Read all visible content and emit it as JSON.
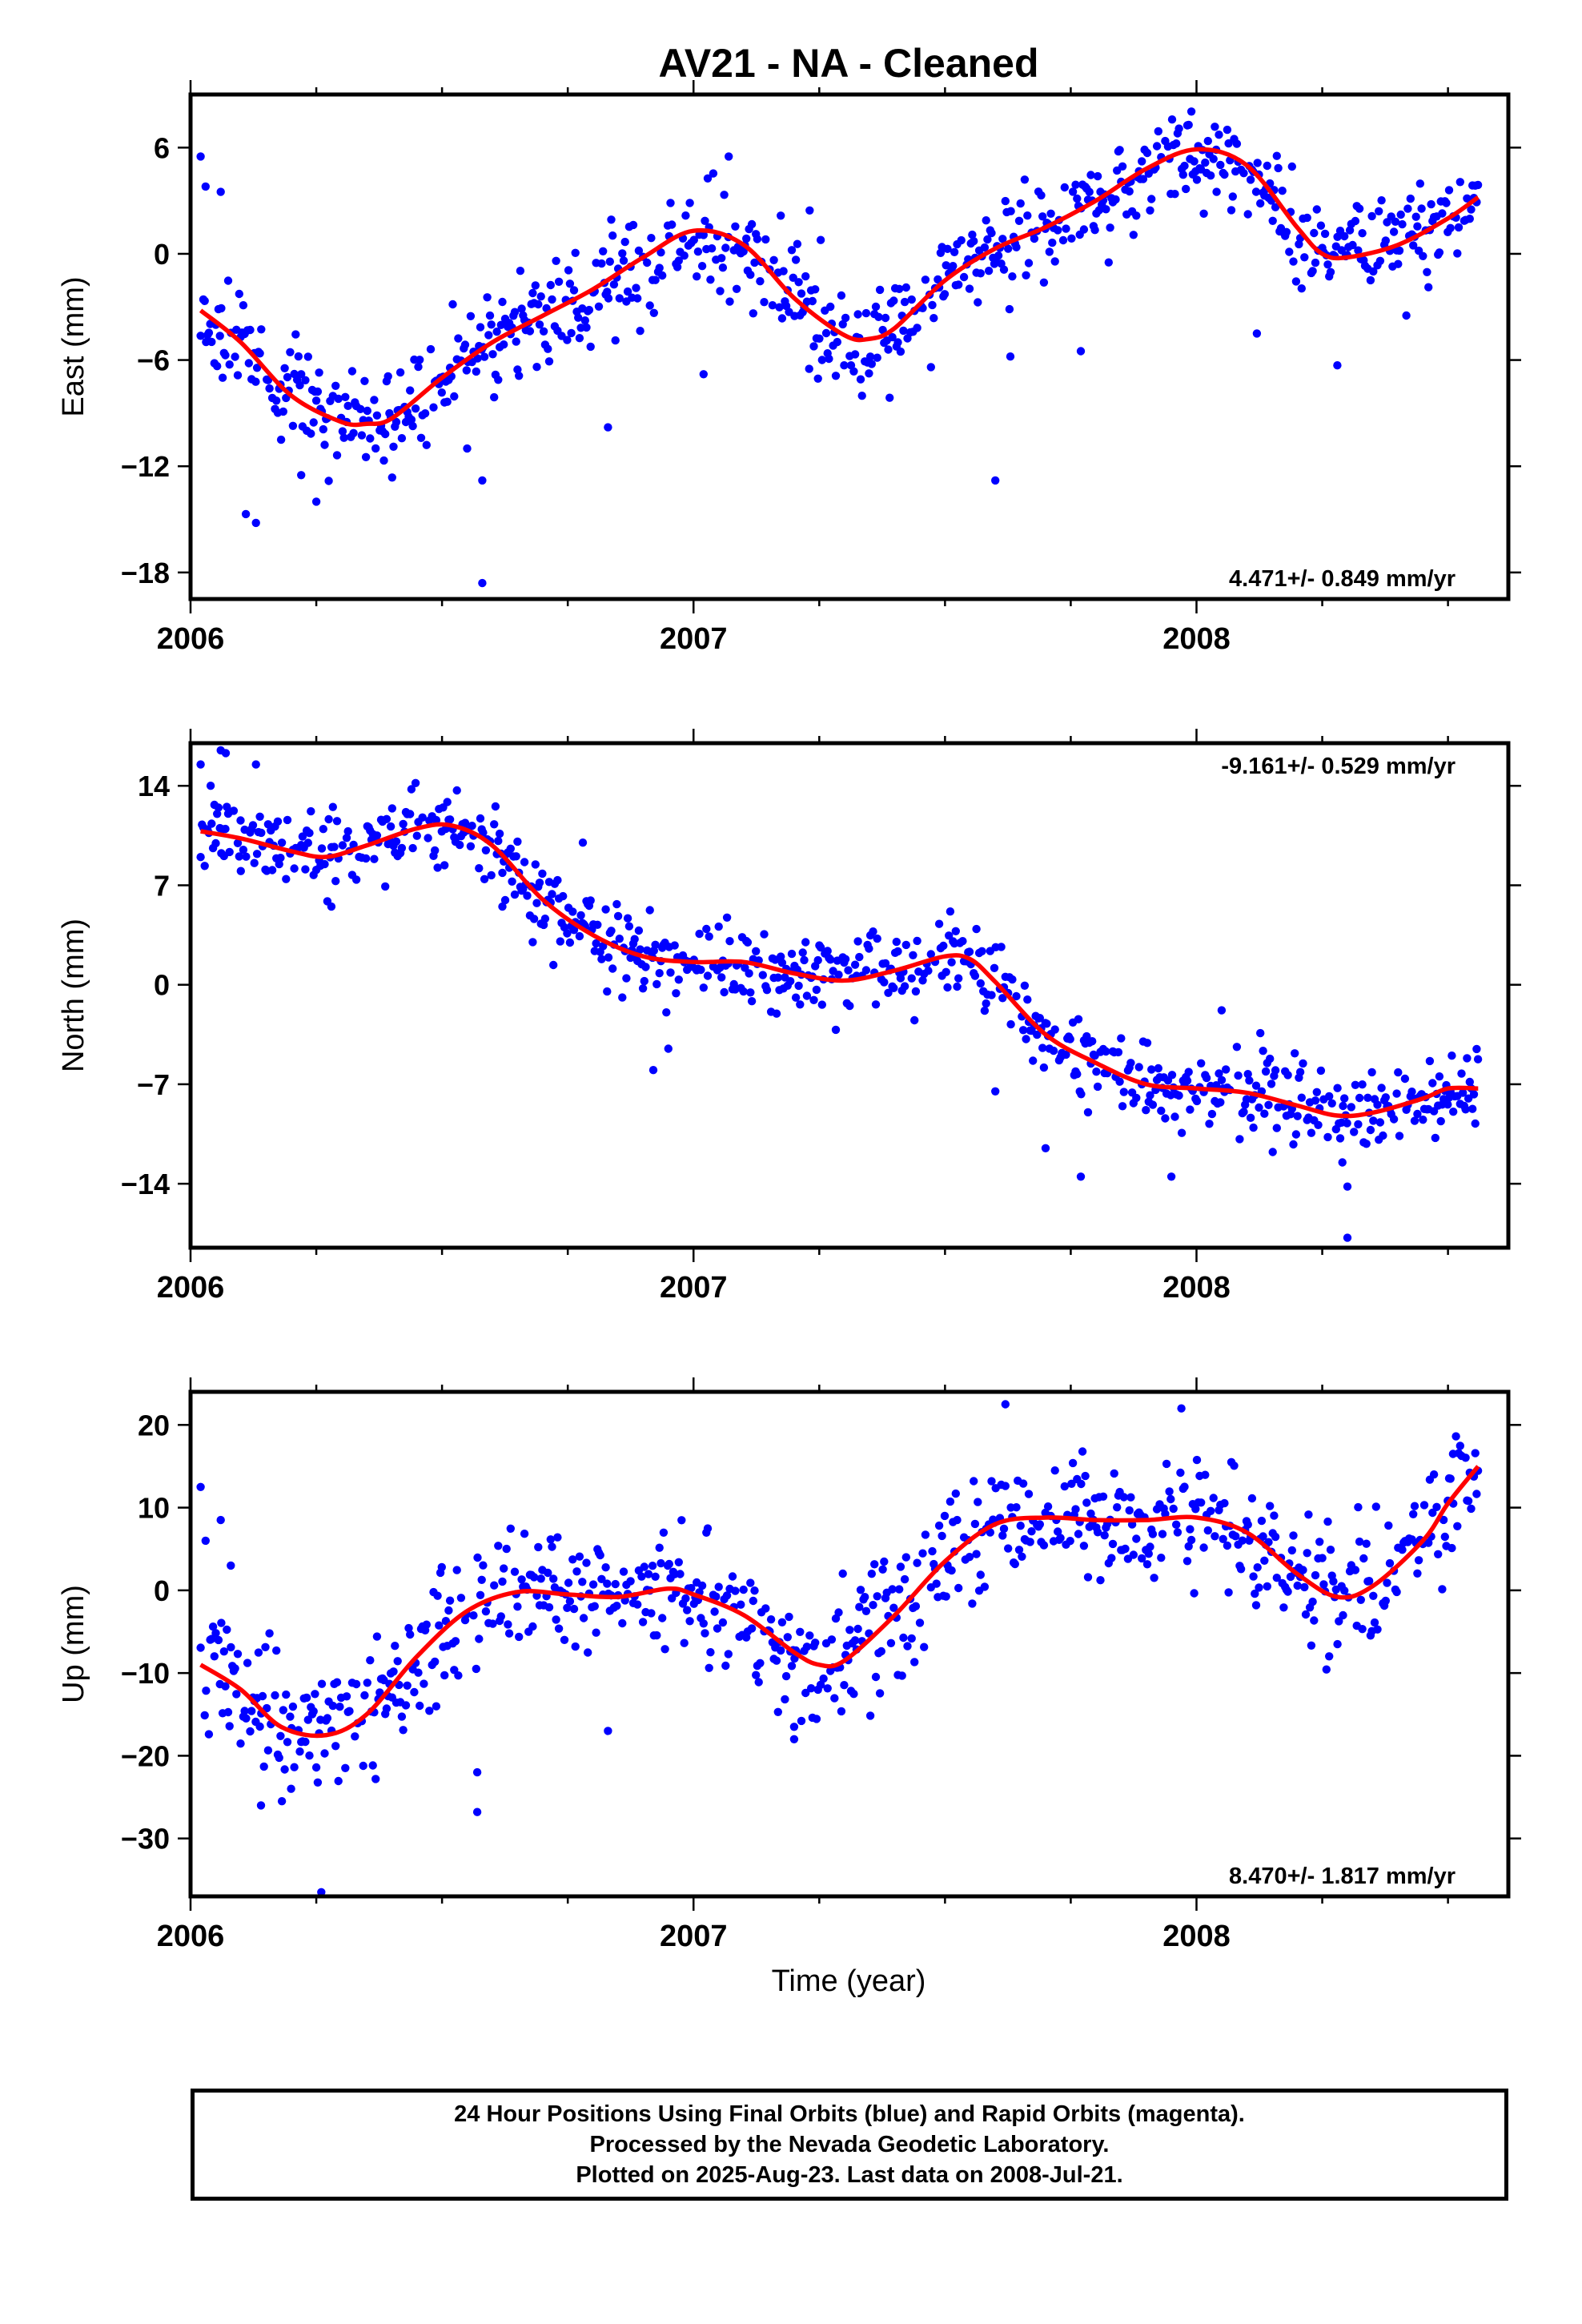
{
  "title": "AV21  - NA - Cleaned",
  "caption": {
    "line1": "24 Hour Positions Using Final Orbits (blue) and Rapid Orbits (magenta).",
    "line2": "Processed by the Nevada Geodetic Laboratory.",
    "line3": "Plotted on 2025-Aug-23. Last data on 2008-Jul-21."
  },
  "colors": {
    "points": "#0000ff",
    "fit": "#ff0000",
    "axes": "#000000"
  },
  "chart_data": [
    {
      "type": "scatter",
      "ylabel": "East (mm)",
      "xlabel": "",
      "xlim": [
        2006.0,
        2008.62
      ],
      "ylim": [
        -19.5,
        9.0
      ],
      "xticks": [
        "2006",
        "2007",
        "2008"
      ],
      "yticks": [
        "6",
        "0",
        "-6",
        "-12",
        "-18"
      ],
      "rate_label": "4.471+/- 0.849 mm/yr",
      "rate_position": "bottom-right",
      "fit_x": [
        2006.02,
        2006.1,
        2006.2,
        2006.3,
        2006.35,
        2006.4,
        2006.5,
        2006.6,
        2006.7,
        2006.8,
        2006.9,
        2007.0,
        2007.1,
        2007.2,
        2007.3,
        2007.35,
        2007.4,
        2007.5,
        2007.6,
        2007.7,
        2007.8,
        2007.9,
        2008.0,
        2008.1,
        2008.2,
        2008.25,
        2008.3,
        2008.4,
        2008.5,
        2008.56
      ],
      "fit_y": [
        -3.2,
        -5.0,
        -8.0,
        -9.5,
        -9.6,
        -9.3,
        -7.0,
        -5.0,
        -3.5,
        -2.0,
        -0.2,
        1.3,
        0.5,
        -2.5,
        -4.6,
        -4.8,
        -4.2,
        -1.5,
        0.3,
        1.5,
        3.0,
        4.8,
        5.9,
        5.0,
        1.5,
        0.0,
        -0.2,
        0.5,
        2.0,
        3.2
      ],
      "noise": 1.5,
      "seed": 11,
      "points_x": [
        2006.02,
        2006.03,
        2006.06,
        2006.11,
        2006.13,
        2006.18,
        2006.22,
        2006.25,
        2006.55,
        2006.58,
        2006.58,
        2006.83,
        2007.02,
        2007.07,
        2007.23,
        2007.6,
        2007.63,
        2007.77,
        2008.04,
        2008.12,
        2008.28
      ],
      "points_y": [
        5.5,
        3.8,
        3.5,
        -14.7,
        -15.2,
        -10.5,
        -12.5,
        -14.0,
        -11.0,
        -12.8,
        -18.6,
        -9.8,
        -6.8,
        5.5,
        -6.5,
        -12.8,
        -5.8,
        -5.5,
        3.5,
        -4.5,
        -6.3
      ]
    },
    {
      "type": "scatter",
      "ylabel": "North (mm)",
      "xlabel": "",
      "xlim": [
        2006.0,
        2008.62
      ],
      "ylim": [
        -18.5,
        17.0
      ],
      "xticks": [
        "2006",
        "2007",
        "2008"
      ],
      "yticks": [
        "14",
        "7",
        "0",
        "-7",
        "-14"
      ],
      "rate_label": "-9.161+/- 0.529 mm/yr",
      "rate_position": "top-right",
      "fit_x": [
        2006.02,
        2006.1,
        2006.2,
        2006.27,
        2006.35,
        2006.45,
        2006.52,
        2006.6,
        2006.7,
        2006.8,
        2006.9,
        2007.0,
        2007.1,
        2007.2,
        2007.3,
        2007.4,
        2007.5,
        2007.55,
        2007.6,
        2007.7,
        2007.8,
        2007.9,
        2008.0,
        2008.1,
        2008.2,
        2008.28,
        2008.35,
        2008.45,
        2008.5,
        2008.56
      ],
      "fit_y": [
        10.8,
        10.3,
        9.4,
        9.0,
        9.8,
        11.0,
        11.2,
        9.8,
        6.0,
        3.5,
        2.0,
        1.6,
        1.6,
        0.8,
        0.3,
        1.0,
        2.0,
        1.8,
        0.2,
        -3.5,
        -5.5,
        -7.0,
        -7.3,
        -7.6,
        -8.5,
        -9.2,
        -9.0,
        -8.0,
        -7.3,
        -7.3
      ],
      "noise": 1.4,
      "seed": 23,
      "points_x": [
        2006.02,
        2006.04,
        2006.06,
        2006.07,
        2006.13,
        2006.1,
        2006.28,
        2006.62,
        2006.78,
        2006.92,
        2006.95,
        2007.6,
        2007.7,
        2007.77,
        2007.95,
        2008.05,
        2008.29,
        2008.3,
        2008.3
      ],
      "points_y": [
        15.5,
        14.0,
        16.5,
        16.3,
        15.5,
        8.0,
        5.5,
        5.5,
        10.0,
        -6.0,
        -4.5,
        -7.5,
        -11.5,
        -13.5,
        -13.5,
        -1.8,
        -12.5,
        -14.2,
        -17.8
      ]
    },
    {
      "type": "scatter",
      "ylabel": "Up (mm)",
      "xlabel": "Time (year)",
      "xlim": [
        2006.0,
        2008.62
      ],
      "ylim": [
        -37.0,
        24.0
      ],
      "xticks": [
        "2006",
        "2007",
        "2008"
      ],
      "yticks": [
        "20",
        "10",
        "0",
        "-10",
        "-20",
        "-30"
      ],
      "rate_label": "8.470+/- 1.817 mm/yr",
      "rate_position": "bottom-right",
      "fit_x": [
        2006.02,
        2006.1,
        2006.18,
        2006.27,
        2006.35,
        2006.45,
        2006.55,
        2006.65,
        2006.75,
        2006.85,
        2006.95,
        2007.0,
        2007.1,
        2007.2,
        2007.25,
        2007.3,
        2007.4,
        2007.5,
        2007.6,
        2007.7,
        2007.8,
        2007.9,
        2008.0,
        2008.1,
        2008.2,
        2008.28,
        2008.35,
        2008.45,
        2008.5,
        2008.56
      ],
      "fit_y": [
        -9.0,
        -12.0,
        -16.5,
        -17.5,
        -15.0,
        -8.0,
        -2.5,
        -0.2,
        -0.5,
        -0.8,
        0.2,
        -0.5,
        -3.0,
        -7.5,
        -9.0,
        -8.5,
        -3.0,
        3.5,
        8.0,
        8.8,
        8.5,
        8.5,
        8.8,
        7.0,
        2.0,
        -0.8,
        0.5,
        6.0,
        10.5,
        15.0
      ],
      "noise": 3.8,
      "seed": 37,
      "points_x": [
        2006.02,
        2006.03,
        2006.06,
        2006.08,
        2006.14,
        2006.2,
        2006.26,
        2006.57,
        2006.57,
        2006.83,
        2007.2,
        2007.2,
        2007.62,
        2007.97,
        2008.51
      ],
      "points_y": [
        12.5,
        6.0,
        8.5,
        3.0,
        -26.0,
        -24.0,
        -36.5,
        -22.0,
        -26.8,
        -17.0,
        -16.5,
        -18.0,
        22.5,
        22.0,
        16.5
      ]
    }
  ]
}
